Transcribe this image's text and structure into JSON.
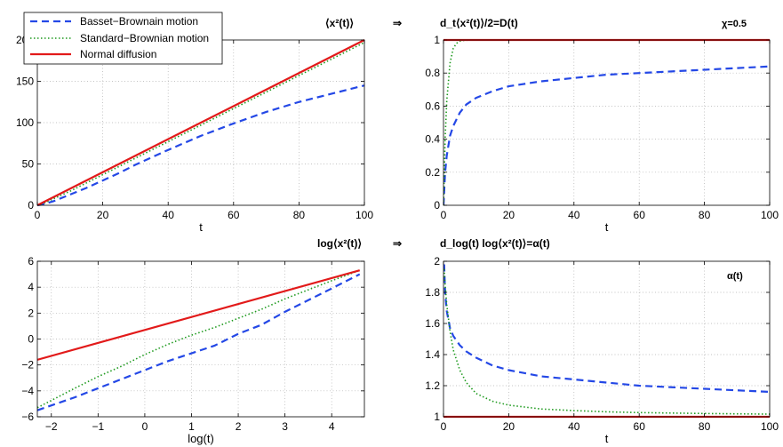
{
  "colors": {
    "basset": "#2448e6",
    "standard": "#1e9a1e",
    "normal": "#e21a1a"
  },
  "annotations": {
    "top_title_left": "⟨x²(t)⟩",
    "top_arrow": "⇒",
    "top_title_right": "d_t⟨x²(t)⟩/2=D(t)",
    "chi": "χ=0.5",
    "bottom_title_left": "log⟨x²(t)⟩",
    "bottom_arrow": "⇒",
    "bottom_title_right": "d_log(t) log⟨x²(t)⟩=α(t)",
    "alpha_label": "α(t)"
  },
  "legend": [
    "Basset−Brownain motion",
    "Standard−Brownian motion",
    "Normal diffusion"
  ],
  "chart_data": [
    {
      "id": "msd",
      "type": "line",
      "title": "⟨x²(t)⟩",
      "xlabel": "t",
      "ylabel": "",
      "xlim": [
        0,
        100
      ],
      "ylim": [
        0,
        200
      ],
      "xticks": [
        0,
        20,
        40,
        60,
        80,
        100
      ],
      "yticks": [
        0,
        50,
        100,
        150,
        200
      ],
      "grid": true,
      "legend_position": "top-left",
      "series": [
        {
          "name": "Basset−Brownain motion",
          "style": "dashed",
          "x": [
            0,
            2,
            5,
            10,
            15,
            20,
            25,
            30,
            40,
            50,
            60,
            70,
            80,
            90,
            100
          ],
          "y": [
            0,
            1.5,
            5,
            13,
            21,
            30,
            39,
            49,
            67,
            84,
            99,
            113,
            125,
            135,
            145
          ]
        },
        {
          "name": "Standard−Brownian motion",
          "style": "dotted",
          "x": [
            0,
            2,
            5,
            10,
            20,
            40,
            60,
            80,
            100
          ],
          "y": [
            0,
            2.5,
            8,
            17,
            37,
            77,
            117,
            157,
            197
          ]
        },
        {
          "name": "Normal diffusion",
          "style": "solid",
          "x": [
            0,
            100
          ],
          "y": [
            0,
            200
          ]
        }
      ]
    },
    {
      "id": "diffusivity",
      "type": "line",
      "title": "d_t⟨x²(t)⟩/2=D(t)",
      "xlabel": "t",
      "ylabel": "",
      "xlim": [
        0,
        100
      ],
      "ylim": [
        0,
        1
      ],
      "xticks": [
        0,
        20,
        40,
        60,
        80,
        100
      ],
      "yticks": [
        0,
        0.2,
        0.4,
        0.6,
        0.8,
        1
      ],
      "grid": true,
      "series": [
        {
          "name": "Basset−Brownain motion",
          "style": "dashed",
          "x": [
            0,
            0.5,
            1,
            2,
            3,
            5,
            7,
            10,
            15,
            20,
            30,
            40,
            50,
            60,
            70,
            80,
            90,
            100
          ],
          "y": [
            0,
            0.2,
            0.3,
            0.42,
            0.48,
            0.56,
            0.61,
            0.65,
            0.69,
            0.72,
            0.75,
            0.77,
            0.79,
            0.8,
            0.81,
            0.82,
            0.83,
            0.84
          ]
        },
        {
          "name": "Standard−Brownian motion",
          "style": "dotted",
          "x": [
            0,
            0.5,
            1,
            2,
            3,
            4,
            5,
            6,
            8,
            10,
            12,
            100
          ],
          "y": [
            0,
            0.4,
            0.63,
            0.86,
            0.95,
            0.98,
            0.993,
            0.997,
            1,
            1,
            1,
            1
          ]
        },
        {
          "name": "Normal diffusion",
          "style": "solid",
          "x": [
            0,
            100
          ],
          "y": [
            1,
            1
          ]
        }
      ]
    },
    {
      "id": "logmsd",
      "type": "line",
      "title": "log⟨x²(t)⟩",
      "xlabel": "log(t)",
      "ylabel": "",
      "xlim": [
        -2.3,
        4.7
      ],
      "ylim": [
        -6,
        6
      ],
      "xticks": [
        -2,
        -1,
        0,
        1,
        2,
        3,
        4
      ],
      "yticks": [
        -6,
        -4,
        -2,
        0,
        2,
        4,
        6
      ],
      "grid": true,
      "series": [
        {
          "name": "Basset−Brownain motion",
          "style": "dashed",
          "x": [
            -2.3,
            -1.5,
            -1,
            -0.5,
            0,
            0.5,
            1,
            1.5,
            2,
            2.5,
            3,
            3.5,
            4,
            4.6
          ],
          "y": [
            -5.5,
            -4.5,
            -3.8,
            -3.1,
            -2.4,
            -1.7,
            -1.1,
            -0.5,
            0.4,
            1.1,
            2.1,
            3,
            3.9,
            5
          ]
        },
        {
          "name": "Standard−Brownian motion",
          "style": "dotted",
          "x": [
            -2.3,
            -1.5,
            -1,
            -0.5,
            0,
            0.5,
            1,
            1.5,
            2,
            2.5,
            3,
            3.5,
            4,
            4.6
          ],
          "y": [
            -5.3,
            -3.8,
            -2.9,
            -2.1,
            -1.2,
            -0.4,
            0.3,
            0.9,
            1.6,
            2.3,
            3.1,
            3.8,
            4.5,
            5.3
          ]
        },
        {
          "name": "Normal diffusion",
          "style": "solid",
          "x": [
            -2.3,
            4.6
          ],
          "y": [
            -1.6,
            5.3
          ]
        }
      ]
    },
    {
      "id": "alpha",
      "type": "line",
      "title": "d_log(t) log⟨x²(t)⟩=α(t)",
      "xlabel": "t",
      "ylabel": "",
      "xlim": [
        0,
        100
      ],
      "ylim": [
        1,
        2
      ],
      "xticks": [
        0,
        20,
        40,
        60,
        80,
        100
      ],
      "yticks": [
        1,
        1.2,
        1.4,
        1.6,
        1.8,
        2
      ],
      "grid": true,
      "annotation": "α(t)",
      "series": [
        {
          "name": "Basset−Brownain motion",
          "style": "dashed",
          "x": [
            0.2,
            0.5,
            1,
            2,
            3,
            5,
            7,
            10,
            15,
            20,
            30,
            40,
            50,
            60,
            70,
            80,
            90,
            100
          ],
          "y": [
            1.98,
            1.8,
            1.68,
            1.57,
            1.52,
            1.46,
            1.42,
            1.38,
            1.33,
            1.3,
            1.26,
            1.24,
            1.22,
            1.2,
            1.19,
            1.18,
            1.17,
            1.16
          ]
        },
        {
          "name": "Standard−Brownian motion",
          "style": "dotted",
          "x": [
            0.2,
            0.5,
            1,
            2,
            3,
            5,
            7,
            10,
            15,
            20,
            30,
            40,
            50,
            60,
            70,
            80,
            90,
            100
          ],
          "y": [
            1.95,
            1.85,
            1.72,
            1.55,
            1.43,
            1.3,
            1.22,
            1.15,
            1.1,
            1.075,
            1.05,
            1.04,
            1.032,
            1.027,
            1.024,
            1.021,
            1.019,
            1.017
          ]
        },
        {
          "name": "Normal diffusion",
          "style": "solid",
          "x": [
            0,
            100
          ],
          "y": [
            1,
            1
          ]
        }
      ]
    }
  ]
}
